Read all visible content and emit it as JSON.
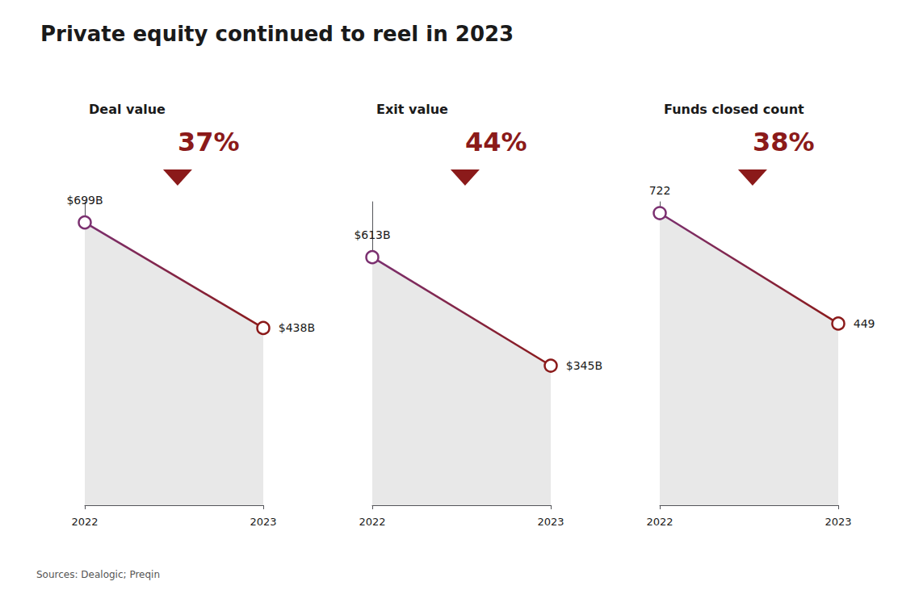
{
  "chart_data": [
    {
      "type": "line",
      "title": "Private equity continued to reel in 2023",
      "subtitle": "Deal value",
      "categories": [
        "2022",
        "2023"
      ],
      "values": [
        699,
        438
      ],
      "value_labels": [
        "$699B",
        "$438B"
      ],
      "annotations": [
        "37%",
        "Sources: Dealogic; Preqin"
      ],
      "colors": [
        "#7b3070",
        "#8b1a1a"
      ],
      "ylim": [
        0,
        750
      ],
      "tick_labels": "x",
      "grid": false,
      "data_labels": true,
      "marker": "circle"
    },
    {
      "type": "line",
      "subtitle": "Exit value",
      "categories": [
        "2022",
        "2023"
      ],
      "values": [
        613,
        345
      ],
      "value_labels": [
        "$613B",
        "$345B"
      ],
      "annotations": [
        "44%"
      ],
      "colors": [
        "#7b3070",
        "#8b1a1a"
      ],
      "ylim": [
        0,
        750
      ],
      "tick_labels": "x",
      "grid": false,
      "data_labels": true,
      "marker": "circle"
    },
    {
      "type": "line",
      "subtitle": "Funds closed count",
      "categories": [
        "2022",
        "2023"
      ],
      "values": [
        722,
        449
      ],
      "value_labels": [
        "722",
        "449"
      ],
      "annotations": [
        "38%"
      ],
      "colors": [
        "#7b3070",
        "#8b1a1a"
      ],
      "ylim": [
        0,
        750
      ],
      "tick_labels": "x",
      "grid": false,
      "data_labels": true,
      "marker": "circle"
    }
  ]
}
